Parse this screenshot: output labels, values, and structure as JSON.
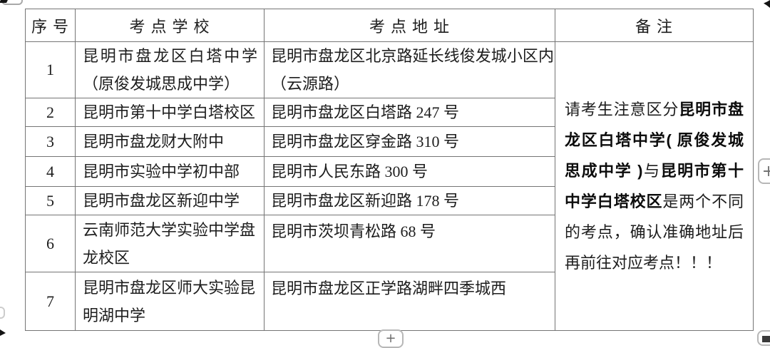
{
  "table": {
    "headers": [
      "序号",
      "考点学校",
      "考点地址",
      "备注"
    ],
    "rows": [
      {
        "no": "1",
        "school": "昆明市盘龙区白塔中学（原俊发城思成中学）",
        "address": "昆明市盘龙区北京路延长线俊发城小区内（云源路）"
      },
      {
        "no": "2",
        "school": "昆明市第十中学白塔校区",
        "address": "昆明市盘龙区白塔路 247 号"
      },
      {
        "no": "3",
        "school": "昆明市盘龙财大附中",
        "address": "昆明市盘龙区穿金路 310 号"
      },
      {
        "no": "4",
        "school": "昆明市实验中学初中部",
        "address": "昆明市人民东路 300 号"
      },
      {
        "no": "5",
        "school": "昆明市盘龙区新迎中学",
        "address": "昆明市盘龙区新迎路 178 号"
      },
      {
        "no": "6",
        "school": "云南师范大学实验中学盘龙校区",
        "address": "昆明市茨坝青松路 68 号"
      },
      {
        "no": "7",
        "school": "昆明市盘龙区师大实验昆明湖中学",
        "address": "昆明市盘龙区正学路湖畔四季城西"
      }
    ],
    "remark_segments": [
      {
        "text": "请考生注意区分",
        "bold": false
      },
      {
        "text": "昆明市盘龙区白塔中学( 原俊发城思成中学 )",
        "bold": true
      },
      {
        "text": "与",
        "bold": false
      },
      {
        "text": "昆明市第十中学白塔校区",
        "bold": true
      },
      {
        "text": "是两个不同的考点，确认准确地址后再前往对应考点！！！",
        "bold": false
      }
    ]
  },
  "controls": {
    "zoom_in_label": "+",
    "bottom_center_label": "+"
  },
  "colors": {
    "table_border": "#757575",
    "text": "#1d1d1d",
    "control_border": "#b7b7b7"
  }
}
